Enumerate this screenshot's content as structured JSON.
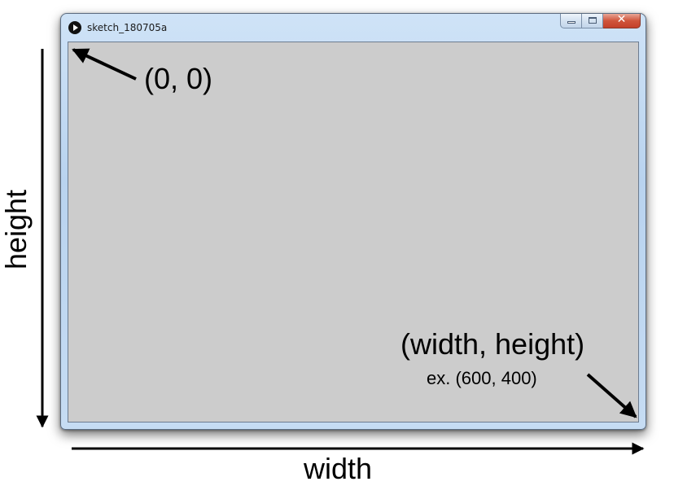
{
  "window": {
    "title": "sketch_180705a",
    "close_glyph": "✕",
    "icons": {
      "app": "play-icon",
      "minimize": "minimize-icon",
      "maximize": "maximize-icon",
      "close": "close-icon"
    },
    "canvas_color": "#cccccc"
  },
  "annotations": {
    "origin": "(0, 0)",
    "corner": "(width, height)",
    "example": "ex. (600, 400)",
    "width_axis": "width",
    "height_axis": "height"
  }
}
